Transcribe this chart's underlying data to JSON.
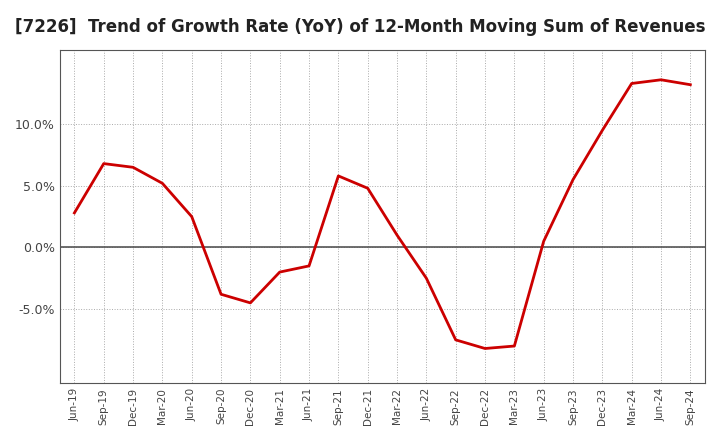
{
  "title": "[7226]  Trend of Growth Rate (YoY) of 12-Month Moving Sum of Revenues",
  "title_fontsize": 12,
  "line_color": "#cc0000",
  "background_color": "#ffffff",
  "grid_color": "#aaaaaa",
  "x_labels": [
    "Jun-19",
    "Sep-19",
    "Dec-19",
    "Mar-20",
    "Jun-20",
    "Sep-20",
    "Dec-20",
    "Mar-21",
    "Jun-21",
    "Sep-21",
    "Dec-21",
    "Mar-22",
    "Jun-22",
    "Sep-22",
    "Dec-22",
    "Mar-23",
    "Jun-23",
    "Sep-23",
    "Dec-23",
    "Mar-24",
    "Jun-24",
    "Sep-24"
  ],
  "y_values": [
    2.8,
    6.8,
    6.5,
    5.2,
    2.5,
    -3.8,
    -4.5,
    -2.0,
    -1.5,
    5.8,
    4.8,
    1.0,
    -2.5,
    -7.5,
    -8.2,
    -8.0,
    0.5,
    5.5,
    9.5,
    13.3,
    13.6,
    13.2
  ],
  "ylim": [
    -11,
    16
  ],
  "yticks": [
    -5.0,
    0.0,
    5.0,
    10.0
  ],
  "spine_color": "#555555"
}
